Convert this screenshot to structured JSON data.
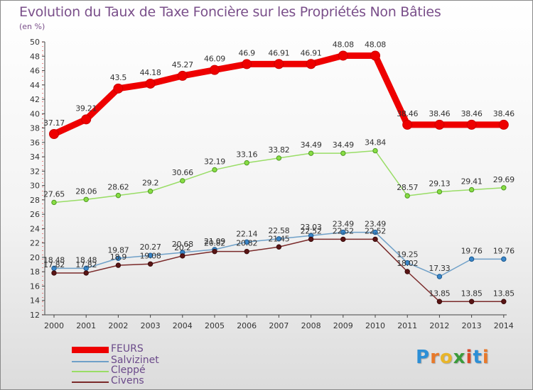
{
  "title": "Evolution du Taux de Taxe Foncière sur les Propriétés Non Bâties",
  "unit_label": "(en %)",
  "logo": {
    "text": "Proxiti",
    "letters": [
      "P",
      "r",
      "o",
      "x",
      "i",
      "t",
      "i"
    ],
    "colors": [
      "#2d8fd6",
      "#e8792a",
      "#e8b52a",
      "#3b9b3b",
      "#d94a2a",
      "#2d8fd6",
      "#e8792a"
    ]
  },
  "chart_data": {
    "type": "line",
    "title": "Evolution du Taux de Taxe Foncière sur les Propriétés Non Bâties",
    "ylabel": "(en %)",
    "xlabel": "",
    "ylim": [
      12,
      50
    ],
    "yticks": [
      12,
      14,
      16,
      18,
      20,
      22,
      24,
      26,
      28,
      30,
      32,
      34,
      36,
      38,
      40,
      42,
      44,
      46,
      48,
      50
    ],
    "categories": [
      "2000",
      "2001",
      "2002",
      "2003",
      "2004",
      "2005",
      "2006",
      "2007",
      "2008",
      "2009",
      "2010",
      "2011",
      "2012",
      "2013",
      "2014"
    ],
    "series": [
      {
        "name": "FEURS",
        "color": "#ee0000",
        "values": [
          37.17,
          39.21,
          43.5,
          44.18,
          45.27,
          46.09,
          46.9,
          46.91,
          46.91,
          48.08,
          48.08,
          38.46,
          38.46,
          38.46,
          38.46
        ],
        "labels": [
          "37.17",
          "39.21",
          "43.5",
          "44.18",
          "45.27",
          "46.09",
          "46.9",
          "46.91",
          "46.91",
          "48.08",
          "48.08",
          "38.46",
          "38.46",
          "38.46",
          "38.46"
        ]
      },
      {
        "name": "Salvizinet",
        "color": "#6fa0c8",
        "values": [
          18.48,
          18.48,
          19.87,
          20.27,
          20.68,
          21.09,
          22.14,
          22.58,
          23.03,
          23.49,
          23.49,
          19.25,
          17.33,
          19.76,
          19.76
        ],
        "labels": [
          "18.48",
          "18.48",
          "19.87",
          "20.27",
          "20.68",
          "21.09",
          "22.14",
          "22.58",
          "23.03",
          "23.49",
          "23.49",
          "19.25",
          "17.33",
          "19.76",
          "19.76"
        ]
      },
      {
        "name": "Cleppé",
        "color": "#99dd66",
        "values": [
          27.65,
          28.06,
          28.62,
          29.2,
          30.66,
          32.19,
          33.16,
          33.82,
          34.49,
          34.49,
          34.84,
          28.57,
          29.13,
          29.41,
          29.69
        ],
        "labels": [
          "27.65",
          "28.06",
          "28.62",
          "29.2",
          "30.66",
          "32.19",
          "33.16",
          "33.82",
          "34.49",
          "34.49",
          "34.84",
          "28.57",
          "29.13",
          "29.41",
          "29.69"
        ]
      },
      {
        "name": "Civens",
        "color": "#7a2a2a",
        "values": [
          17.82,
          17.82,
          18.9,
          19.08,
          20.2,
          20.82,
          20.82,
          21.45,
          22.52,
          22.52,
          22.52,
          18.02,
          13.85,
          13.85,
          13.85
        ],
        "labels": [
          "17.82",
          "17.82",
          "18.9",
          "19.08",
          "20.2",
          "20.82",
          "20.82",
          "21.45",
          "22.52",
          "22.52",
          "22.52",
          "18.02",
          "13.85",
          "13.85",
          "13.85"
        ]
      }
    ],
    "legend_position": "bottom-left",
    "grid": false
  }
}
